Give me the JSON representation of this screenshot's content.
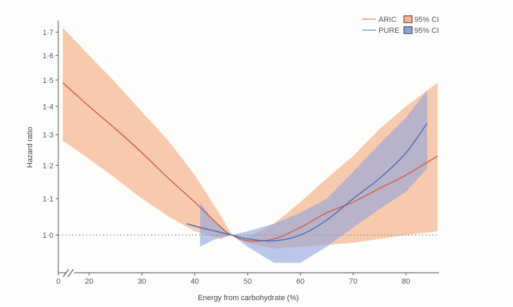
{
  "chart_data": {
    "type": "line",
    "title": "",
    "xlabel": "Energy from carbohydrate (%)",
    "ylabel": "Hazard ratio",
    "xlim": [
      0,
      86
    ],
    "x_axis_break": true,
    "x_ticks": [
      0,
      20,
      30,
      40,
      50,
      60,
      70,
      80
    ],
    "x_tick_labels": [
      "0",
      "20",
      "30",
      "40",
      "50",
      "60",
      "70",
      "80"
    ],
    "y_scale": "log",
    "y_ticks": [
      1.0,
      1.1,
      1.2,
      1.3,
      1.4,
      1.5,
      1.6,
      1.7
    ],
    "y_tick_labels": [
      "1·0",
      "1·1",
      "1·2",
      "1·3",
      "1·4",
      "1·5",
      "1·6",
      "1·7"
    ],
    "reference_line": {
      "y": 1.0,
      "style": "dotted"
    },
    "legend_position": "top-right",
    "legend": [
      {
        "label": "ARIC",
        "ci_label": "95% CI"
      },
      {
        "label": "PURE",
        "ci_label": "95% CI"
      }
    ],
    "series": [
      {
        "name": "ARIC",
        "color": "#d0604a",
        "ci_color": "#f5b48c",
        "x": [
          15,
          20,
          25,
          30,
          35,
          40,
          45,
          47,
          50,
          55,
          60,
          65,
          70,
          75,
          80,
          86
        ],
        "y": [
          1.49,
          1.4,
          1.32,
          1.24,
          1.16,
          1.09,
          1.02,
          1.0,
          0.985,
          0.99,
          1.02,
          1.06,
          1.09,
          1.13,
          1.17,
          1.23
        ],
        "lower": [
          1.28,
          1.22,
          1.16,
          1.1,
          1.05,
          1.01,
          0.99,
          1.0,
          0.98,
          0.965,
          0.97,
          0.975,
          0.98,
          0.99,
          1.0,
          1.01
        ],
        "upper": [
          1.72,
          1.6,
          1.49,
          1.38,
          1.28,
          1.17,
          1.05,
          1.0,
          0.995,
          1.03,
          1.09,
          1.16,
          1.23,
          1.32,
          1.4,
          1.49
        ]
      },
      {
        "name": "PURE",
        "color": "#4a6fb8",
        "ci_color": "#8fa3dc",
        "x": [
          38.5,
          41,
          44,
          47,
          50,
          55,
          60,
          65,
          70,
          75,
          80,
          84
        ],
        "y": [
          1.03,
          1.02,
          1.01,
          1.0,
          0.99,
          0.985,
          1.0,
          1.04,
          1.1,
          1.16,
          1.24,
          1.34
        ],
        "lower": [
          null,
          0.97,
          0.99,
          1.0,
          0.97,
          0.93,
          0.93,
          0.97,
          1.02,
          1.07,
          1.12,
          1.19
        ],
        "upper": [
          null,
          1.09,
          1.03,
          1.0,
          1.01,
          1.03,
          1.06,
          1.1,
          1.18,
          1.27,
          1.36,
          1.46
        ]
      }
    ]
  }
}
